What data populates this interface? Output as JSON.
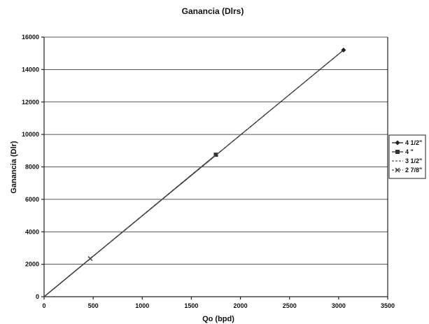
{
  "chart_data": {
    "type": "line",
    "title": "Ganancia (Dlrs)",
    "xlabel": "Qo (bpd)",
    "ylabel": "Ganancia (Dlr)",
    "xlim": [
      0,
      3500
    ],
    "ylim": [
      0,
      16000
    ],
    "x_ticks": [
      "0",
      "500",
      "1000",
      "1500",
      "2000",
      "2500",
      "3000",
      "3500"
    ],
    "y_ticks": [
      "0",
      "2000",
      "4000",
      "6000",
      "8000",
      "10000",
      "12000",
      "14000",
      "16000"
    ],
    "grid": "horizontal",
    "legend_position": "right",
    "series": [
      {
        "name": "4 1/2\"",
        "color": "#222222",
        "dash": "solid",
        "marker": "diamond",
        "x": [
          0,
          3050
        ],
        "y": [
          0,
          15200
        ]
      },
      {
        "name": "4 \"",
        "color": "#333333",
        "dash": "solid",
        "marker": "square",
        "x": [
          0,
          1750
        ],
        "y": [
          0,
          8750
        ]
      },
      {
        "name": "3 1/2\"",
        "color": "#555555",
        "dash": "dashed",
        "marker": "none",
        "x": [
          0,
          3030
        ],
        "y": [
          0,
          15100
        ]
      },
      {
        "name": "2 7/8\"",
        "color": "#444444",
        "dash": "dashed",
        "marker": "cross",
        "x": [
          0,
          470
        ],
        "y": [
          0,
          2350
        ]
      }
    ]
  }
}
